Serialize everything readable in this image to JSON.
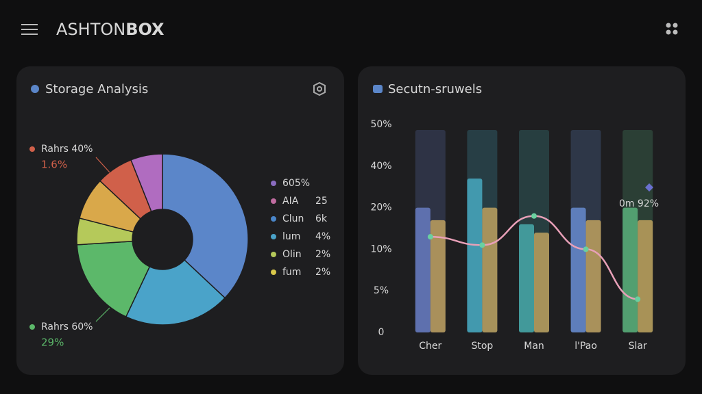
{
  "header": {
    "brand_light": "ASHTON",
    "brand_bold": "BOX"
  },
  "chart_data": [
    {
      "type": "pie",
      "title": "Storage Analysis",
      "donut": true,
      "values": [
        37,
        20,
        17,
        5,
        8,
        7,
        6
      ],
      "colors": [
        "#5b86c9",
        "#4aa3c9",
        "#5cb86a",
        "#b5c95a",
        "#d9a84a",
        "#d0604a",
        "#b06cc0"
      ],
      "annotations": [
        {
          "label": "Rahrs 40%",
          "sub": "1.6%",
          "color": "#d0604a"
        },
        {
          "label": "Rahrs 60%",
          "sub": "29%",
          "color": "#5cb86a"
        }
      ],
      "legend": [
        {
          "label": "605%",
          "color": "#8a6cc0"
        },
        {
          "label": "AIA",
          "value": "25",
          "color": "#c06ca0"
        },
        {
          "label": "Clun",
          "value": "6k",
          "color": "#4a86c9"
        },
        {
          "label": "lum",
          "value": "4%",
          "color": "#4aa3c9"
        },
        {
          "label": "Olin",
          "value": "2%",
          "color": "#b5c95a"
        },
        {
          "label": "fum",
          "value": "2%",
          "color": "#d9c84a"
        }
      ]
    },
    {
      "type": "bar",
      "title": "Secutn-sruwels",
      "categories": [
        "Cher",
        "Stop",
        "Man",
        "l'Pao",
        "Slar"
      ],
      "series": [
        {
          "colors": [
            "#6a80c8",
            "#4ab0c8",
            "#4ab0b0",
            "#6a90d8",
            "#5cb880"
          ],
          "values": [
            20,
            34,
            16,
            20,
            20
          ]
        },
        {
          "color": "#c8a860",
          "values": [
            17,
            20,
            14,
            17,
            17
          ]
        },
        {
          "type": "line",
          "color": "#e8a0b8",
          "values": [
            13,
            11,
            18,
            10,
            4
          ]
        }
      ],
      "ylim": [
        0,
        50
      ],
      "yticks": [
        0,
        {
          "value": 5,
          "label": "5%"
        },
        {
          "value": 10,
          "label": "10%"
        },
        {
          "value": 20,
          "label": "20%"
        },
        {
          "value": 40,
          "label": "40%"
        },
        {
          "value": 50,
          "label": "50%"
        }
      ],
      "annotation": "0m 92%"
    }
  ]
}
